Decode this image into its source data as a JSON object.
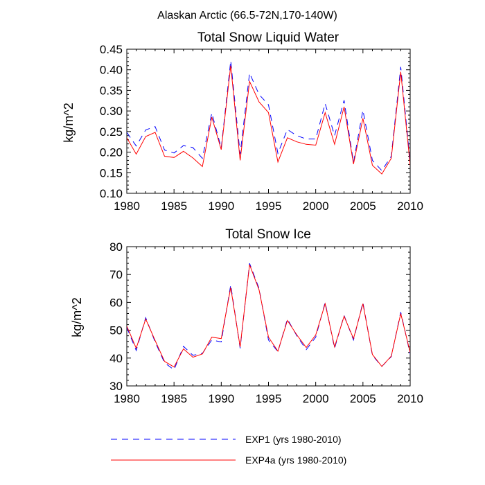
{
  "main_title": "Alaskan Arctic (66.5-72N,170-140W)",
  "legend": {
    "exp1_label": "EXP1 (yrs 1980-2010)",
    "exp4a_label": "EXP4a (yrs 1980-2010)"
  },
  "colors": {
    "exp1": "#0000ff",
    "exp4a": "#ff0000",
    "axis": "#000000"
  },
  "chart_data": [
    {
      "type": "line",
      "title": "Total Snow Liquid Water",
      "xlabel": "",
      "ylabel": "kg/m^2",
      "xlim": [
        1980,
        2010
      ],
      "ylim": [
        0.1,
        0.45
      ],
      "xticks": [
        1980,
        1985,
        1990,
        1995,
        2000,
        2005,
        2010
      ],
      "yticks": [
        "0.10",
        "0.15",
        "0.20",
        "0.25",
        "0.30",
        "0.35",
        "0.40",
        "0.45"
      ],
      "x": [
        1980,
        1981,
        1982,
        1983,
        1984,
        1985,
        1986,
        1987,
        1988,
        1989,
        1990,
        1991,
        1992,
        1993,
        1994,
        1995,
        1996,
        1997,
        1998,
        1999,
        2000,
        2001,
        2002,
        2003,
        2004,
        2005,
        2006,
        2007,
        2008,
        2009,
        2010
      ],
      "series": [
        {
          "name": "EXP1 (yrs 1980-2010)",
          "style": "dashed",
          "values": [
            0.248,
            0.215,
            0.254,
            0.262,
            0.205,
            0.198,
            0.216,
            0.211,
            0.185,
            0.295,
            0.21,
            0.422,
            0.195,
            0.392,
            0.34,
            0.315,
            0.197,
            0.255,
            0.24,
            0.232,
            0.232,
            0.318,
            0.24,
            0.326,
            0.175,
            0.302,
            0.18,
            0.155,
            0.19,
            0.407,
            0.175
          ]
        },
        {
          "name": "EXP4a (yrs 1980-2010)",
          "style": "solid",
          "values": [
            0.235,
            0.195,
            0.238,
            0.248,
            0.19,
            0.187,
            0.202,
            0.186,
            0.165,
            0.285,
            0.206,
            0.41,
            0.18,
            0.372,
            0.322,
            0.296,
            0.176,
            0.235,
            0.225,
            0.219,
            0.217,
            0.296,
            0.219,
            0.31,
            0.171,
            0.282,
            0.168,
            0.147,
            0.185,
            0.395,
            0.168
          ]
        }
      ]
    },
    {
      "type": "line",
      "title": "Total Snow Ice",
      "xlabel": "",
      "ylabel": "kg/m^2",
      "xlim": [
        1980,
        2010
      ],
      "ylim": [
        30,
        80
      ],
      "xticks": [
        1980,
        1985,
        1990,
        1995,
        2000,
        2005,
        2010
      ],
      "yticks": [
        "30",
        "40",
        "50",
        "60",
        "70",
        "80"
      ],
      "x": [
        1980,
        1981,
        1982,
        1983,
        1984,
        1985,
        1986,
        1987,
        1988,
        1989,
        1990,
        1991,
        1992,
        1993,
        1994,
        1995,
        1996,
        1997,
        1998,
        1999,
        2000,
        2001,
        2002,
        2003,
        2004,
        2005,
        2006,
        2007,
        2008,
        2009,
        2010
      ],
      "series": [
        {
          "name": "EXP1 (yrs 1980-2010)",
          "style": "dashed",
          "values": [
            51.0,
            42.7,
            54.5,
            45.8,
            38.3,
            35.8,
            44.2,
            41.0,
            41.7,
            46.5,
            45.8,
            66.3,
            43.5,
            74.0,
            65.0,
            46.5,
            42.3,
            54.0,
            48.0,
            43.0,
            47.5,
            60.0,
            43.5,
            55.3,
            46.5,
            60.0,
            41.0,
            37.0,
            40.5,
            56.5,
            41.5
          ]
        },
        {
          "name": "EXP4a (yrs 1980-2010)",
          "style": "solid",
          "values": [
            51.5,
            43.5,
            54.0,
            46.3,
            38.8,
            36.8,
            43.3,
            40.3,
            41.5,
            47.5,
            47.0,
            65.3,
            44.0,
            73.5,
            64.5,
            47.5,
            42.5,
            53.5,
            48.3,
            43.8,
            48.3,
            59.5,
            44.0,
            55.0,
            47.0,
            59.5,
            41.3,
            37.0,
            40.7,
            56.0,
            42.0
          ]
        }
      ]
    }
  ]
}
